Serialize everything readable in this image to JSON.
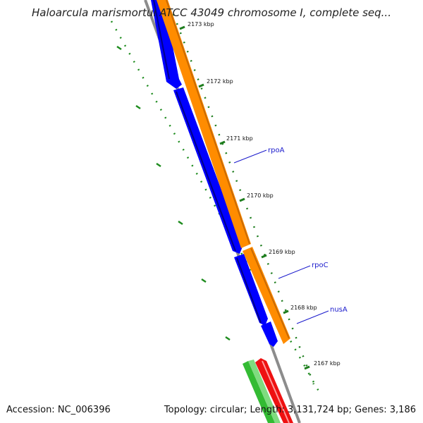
{
  "title": "Haloarcula marismortui ATCC 43049 chromosome I, complete seq...",
  "footer": {
    "accession": "Accession: NC_006396",
    "summary": "Topology: circular; Length: 3,131,724 bp; Genes: 3,186"
  },
  "ticks": [
    "2173 kbp",
    "2172 kbp",
    "2171 kbp",
    "2170 kbp",
    "2169 kbp",
    "2168 kbp",
    "2167 kbp"
  ],
  "genes": [
    {
      "label": "rpoA",
      "color": "#ff8c00"
    },
    {
      "label": "rpoC",
      "color": "#ff8c00"
    },
    {
      "label": "nusA",
      "color": "#ff8c00"
    }
  ],
  "colors": {
    "forward_cds": "#ff8c00",
    "reverse_cds": "#0000ff",
    "backbone": "#8c8c8c",
    "tick": "#1e7d1e",
    "gc_track": "#1e8c1e",
    "green_feature": "#33bb33",
    "red_feature": "#ee1111",
    "label": "#1a1acc"
  }
}
